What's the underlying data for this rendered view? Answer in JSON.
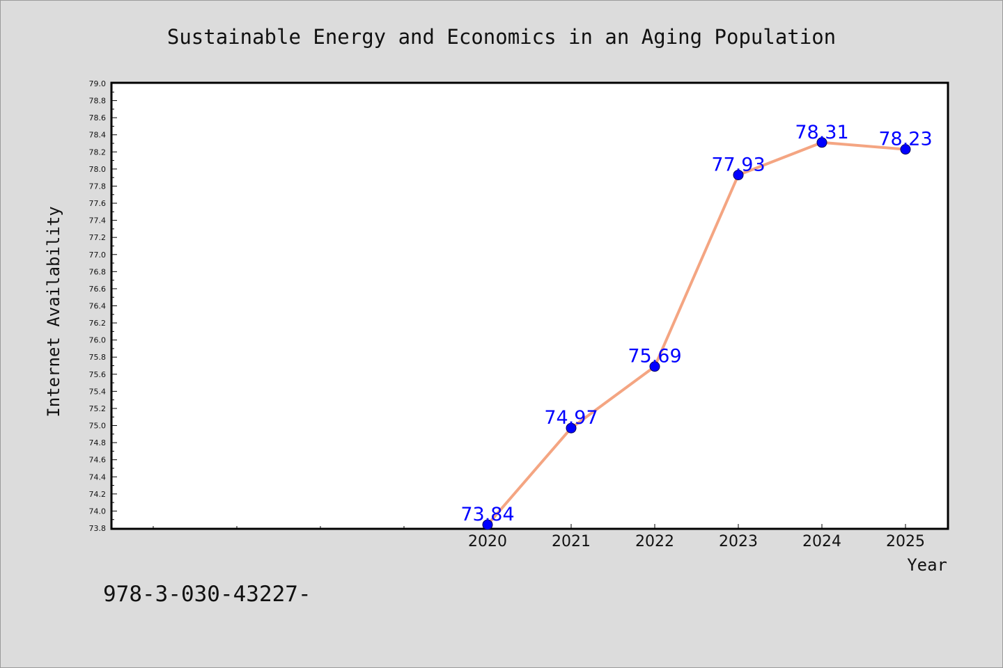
{
  "chart_data": {
    "type": "line",
    "title": "Sustainable Energy and Economics in an Aging Population",
    "xlabel": "Year",
    "ylabel": "Internet Availability",
    "categories": [
      "2020",
      "2021",
      "2022",
      "2023",
      "2024",
      "2025"
    ],
    "series": [
      {
        "values": [
          73.84,
          74.97,
          75.69,
          77.93,
          78.31,
          78.23
        ],
        "labels": [
          "73.84",
          "74.97",
          "75.69",
          "77.93",
          "78.31",
          "78.23"
        ]
      }
    ],
    "ylim": [
      73.8,
      79.0
    ],
    "ytick_step": 0.2,
    "yticks": [
      "73.8",
      "74.0",
      "74.2",
      "74.4",
      "74.6",
      "74.8",
      "75.0",
      "75.2",
      "75.4",
      "75.6",
      "75.8",
      "76.0",
      "76.2",
      "76.4",
      "76.6",
      "76.8",
      "77.0",
      "77.2",
      "77.4",
      "77.6",
      "77.8",
      "78.0",
      "78.2",
      "78.4",
      "78.6",
      "78.8",
      "79.0"
    ],
    "grid": false,
    "line_color": "#f4a582",
    "marker_color": "#0000ff",
    "label_color": "#0000ff",
    "plot_background": "#ffffff",
    "page_background": "#dcdcdc"
  },
  "footer": {
    "isbn": "978-3-030-43227-"
  }
}
